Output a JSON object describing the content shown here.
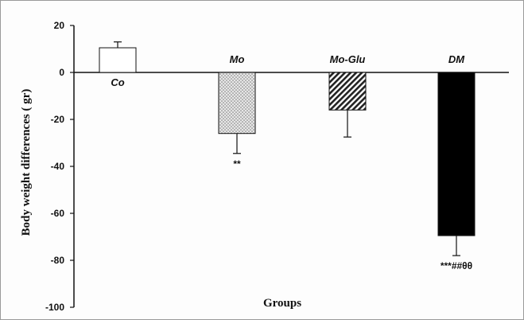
{
  "chart_data": {
    "type": "bar",
    "categories": [
      "Co",
      "Mo",
      "Mo-Glu",
      "DM"
    ],
    "values": [
      10.5,
      -26,
      -16,
      -69.5
    ],
    "error": [
      2.5,
      8.5,
      11.5,
      8.5
    ],
    "significance": [
      "",
      "**",
      "",
      "***##θθ"
    ],
    "title": "",
    "xlabel": "Groups",
    "ylabel": "Body weight differences  ( gr)",
    "ylim": [
      -100,
      20
    ],
    "yticks": [
      20,
      0,
      -20,
      -40,
      -60,
      -80,
      -100
    ],
    "grid": false,
    "legend": "none",
    "bar_fills": [
      "white",
      "dotted",
      "hatched",
      "black"
    ]
  }
}
